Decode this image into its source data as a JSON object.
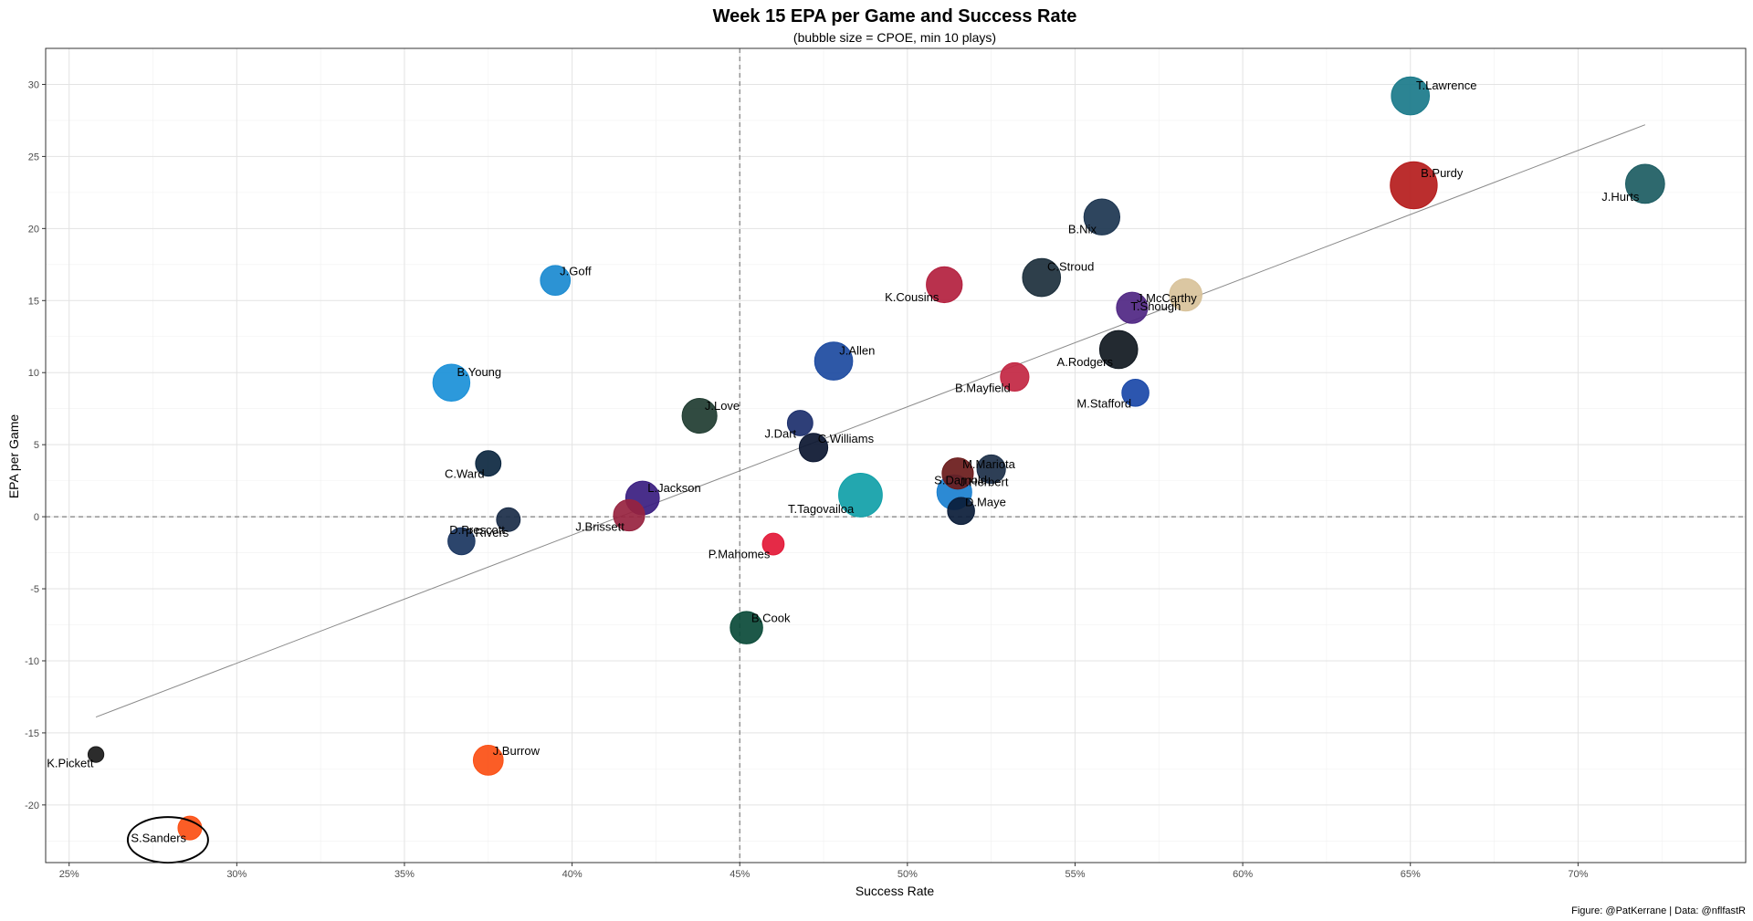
{
  "chart_data": {
    "type": "scatter",
    "title": "Week 15 EPA per Game and Success Rate",
    "subtitle": "(bubble size = CPOE, min 10 plays)",
    "xlabel": "Success Rate",
    "ylabel": "EPA per Game",
    "caption": "Figure: @PatKerrane | Data: @nflfastR",
    "xlim": [
      0.243,
      0.75
    ],
    "ylim": [
      -24.0,
      32.5
    ],
    "x_ticks": [
      0.25,
      0.3,
      0.35,
      0.4,
      0.45,
      0.5,
      0.55,
      0.6,
      0.65,
      0.7
    ],
    "x_tick_labels": [
      "25%",
      "30%",
      "35%",
      "40%",
      "45%",
      "50%",
      "55%",
      "60%",
      "65%",
      "70%"
    ],
    "y_ticks": [
      -20,
      -15,
      -10,
      -5,
      0,
      5,
      10,
      15,
      20,
      25,
      30
    ],
    "y_tick_labels": [
      "-20",
      "-15",
      "-10",
      "-5",
      "0",
      "5",
      "10",
      "15",
      "20",
      "25",
      "30"
    ],
    "grid": true,
    "reference_lines": {
      "x": 0.45,
      "y": 0
    },
    "trend_line": {
      "x": [
        0.258,
        0.72
      ],
      "y": [
        -13.9,
        27.2
      ]
    },
    "highlight": "S.Sanders",
    "points": [
      {
        "name": "T.Lawrence",
        "x": 0.65,
        "y": 29.2,
        "cpoe": 8.0,
        "color": "#1a7a8a"
      },
      {
        "name": "J.Hurts",
        "x": 0.72,
        "y": 23.1,
        "cpoe": 8.5,
        "color": "#1c5c62"
      },
      {
        "name": "B.Purdy",
        "x": 0.651,
        "y": 23.0,
        "cpoe": 13.0,
        "color": "#b51c1c"
      },
      {
        "name": "B.Nix",
        "x": 0.558,
        "y": 20.8,
        "cpoe": 7.0,
        "color": "#1c3550"
      },
      {
        "name": "C.Stroud",
        "x": 0.54,
        "y": 16.6,
        "cpoe": 8.0,
        "color": "#1c2f3c"
      },
      {
        "name": "K.Cousins",
        "x": 0.511,
        "y": 16.1,
        "cpoe": 7.0,
        "color": "#b31f3e"
      },
      {
        "name": "J.Goff",
        "x": 0.395,
        "y": 16.4,
        "cpoe": 4.5,
        "color": "#1a8ad0"
      },
      {
        "name": "T.Shough",
        "x": 0.583,
        "y": 15.4,
        "cpoe": 5.5,
        "color": "#d8c29a"
      },
      {
        "name": "J.McCarthy",
        "x": 0.567,
        "y": 14.5,
        "cpoe": 5.0,
        "color": "#4f2683"
      },
      {
        "name": "A.Rodgers",
        "x": 0.563,
        "y": 11.6,
        "cpoe": 8.0,
        "color": "#101820"
      },
      {
        "name": "J.Allen",
        "x": 0.478,
        "y": 10.8,
        "cpoe": 8.0,
        "color": "#1c4aa0"
      },
      {
        "name": "B.Mayfield",
        "x": 0.532,
        "y": 9.7,
        "cpoe": 4.0,
        "color": "#c22642"
      },
      {
        "name": "B.Young",
        "x": 0.364,
        "y": 9.3,
        "cpoe": 7.5,
        "color": "#1a90d8"
      },
      {
        "name": "M.Stafford",
        "x": 0.568,
        "y": 8.6,
        "cpoe": 3.5,
        "color": "#1a48a8"
      },
      {
        "name": "J.Love",
        "x": 0.438,
        "y": 7.0,
        "cpoe": 6.5,
        "color": "#203c31"
      },
      {
        "name": "J.Dart",
        "x": 0.468,
        "y": 6.5,
        "cpoe": 3.0,
        "color": "#1c2f6c"
      },
      {
        "name": "C.Williams",
        "x": 0.472,
        "y": 4.8,
        "cpoe": 4.0,
        "color": "#0b1630"
      },
      {
        "name": "C.Ward",
        "x": 0.375,
        "y": 3.7,
        "cpoe": 3.0,
        "color": "#0c2740"
      },
      {
        "name": "M.Mariota",
        "x": 0.515,
        "y": 3.0,
        "cpoe": 5.0,
        "color": "#6a1a1a"
      },
      {
        "name": "S.Darnold",
        "x": 0.525,
        "y": 3.3,
        "cpoe": 4.0,
        "color": "#1c2f48"
      },
      {
        "name": "J.Herbert",
        "x": 0.514,
        "y": 1.7,
        "cpoe": 6.5,
        "color": "#1a80d0"
      },
      {
        "name": "T.Tagovailoa",
        "x": 0.486,
        "y": 1.5,
        "cpoe": 11.0,
        "color": "#10a0a8"
      },
      {
        "name": "L.Jackson",
        "x": 0.421,
        "y": 1.3,
        "cpoe": 6.0,
        "color": "#3a1d80"
      },
      {
        "name": "J.Brissett",
        "x": 0.417,
        "y": 0.1,
        "cpoe": 5.0,
        "color": "#97233f"
      },
      {
        "name": "D.Maye",
        "x": 0.516,
        "y": 0.4,
        "cpoe": 3.5,
        "color": "#0a1c38"
      },
      {
        "name": "D.Prescott",
        "x": 0.381,
        "y": -0.2,
        "cpoe": 2.5,
        "color": "#1a2c48"
      },
      {
        "name": "P.Rivers",
        "x": 0.367,
        "y": -1.7,
        "cpoe": 3.5,
        "color": "#1a3560"
      },
      {
        "name": "P.Mahomes",
        "x": 0.46,
        "y": -1.9,
        "cpoe": 2.0,
        "color": "#e31837"
      },
      {
        "name": "B.Cook",
        "x": 0.452,
        "y": -7.7,
        "cpoe": 5.5,
        "color": "#0a4a38"
      },
      {
        "name": "K.Pickett",
        "x": 0.258,
        "y": -16.5,
        "cpoe": 0.8,
        "color": "#1a1a1a"
      },
      {
        "name": "J.Burrow",
        "x": 0.375,
        "y": -16.9,
        "cpoe": 4.5,
        "color": "#fb4f14"
      },
      {
        "name": "S.Sanders",
        "x": 0.286,
        "y": -21.6,
        "cpoe": 2.5,
        "color": "#fb4f14"
      }
    ]
  }
}
